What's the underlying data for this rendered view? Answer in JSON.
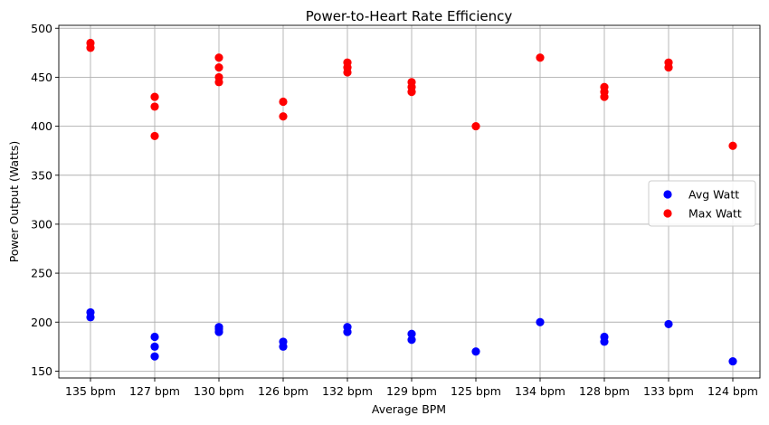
{
  "chart_data": {
    "type": "scatter",
    "title": "Power-to-Heart Rate Efficiency",
    "xlabel": "Average BPM",
    "ylabel": "Power Output (Watts)",
    "categories": [
      "135 bpm",
      "127 bpm",
      "130 bpm",
      "126 bpm",
      "132 bpm",
      "129 bpm",
      "125 bpm",
      "134 bpm",
      "128 bpm",
      "133 bpm",
      "124 bpm"
    ],
    "ylim": [
      143,
      503
    ],
    "yticks": [
      150,
      200,
      250,
      300,
      350,
      400,
      450,
      500
    ],
    "grid": true,
    "legend_position": "center-right",
    "series": [
      {
        "name": "Avg Watt",
        "color": "#0000ff",
        "points": [
          {
            "x": "135 bpm",
            "y": 205
          },
          {
            "x": "135 bpm",
            "y": 210
          },
          {
            "x": "127 bpm",
            "y": 165
          },
          {
            "x": "127 bpm",
            "y": 175
          },
          {
            "x": "127 bpm",
            "y": 185
          },
          {
            "x": "130 bpm",
            "y": 190
          },
          {
            "x": "130 bpm",
            "y": 193
          },
          {
            "x": "130 bpm",
            "y": 195
          },
          {
            "x": "126 bpm",
            "y": 175
          },
          {
            "x": "126 bpm",
            "y": 180
          },
          {
            "x": "132 bpm",
            "y": 190
          },
          {
            "x": "132 bpm",
            "y": 195
          },
          {
            "x": "129 bpm",
            "y": 182
          },
          {
            "x": "129 bpm",
            "y": 188
          },
          {
            "x": "125 bpm",
            "y": 170
          },
          {
            "x": "134 bpm",
            "y": 200
          },
          {
            "x": "128 bpm",
            "y": 180
          },
          {
            "x": "128 bpm",
            "y": 185
          },
          {
            "x": "133 bpm",
            "y": 198
          },
          {
            "x": "124 bpm",
            "y": 160
          }
        ]
      },
      {
        "name": "Max Watt",
        "color": "#ff0000",
        "points": [
          {
            "x": "135 bpm",
            "y": 480
          },
          {
            "x": "135 bpm",
            "y": 485
          },
          {
            "x": "127 bpm",
            "y": 390
          },
          {
            "x": "127 bpm",
            "y": 420
          },
          {
            "x": "127 bpm",
            "y": 430
          },
          {
            "x": "130 bpm",
            "y": 445
          },
          {
            "x": "130 bpm",
            "y": 450
          },
          {
            "x": "130 bpm",
            "y": 460
          },
          {
            "x": "130 bpm",
            "y": 470
          },
          {
            "x": "126 bpm",
            "y": 410
          },
          {
            "x": "126 bpm",
            "y": 425
          },
          {
            "x": "132 bpm",
            "y": 455
          },
          {
            "x": "132 bpm",
            "y": 460
          },
          {
            "x": "132 bpm",
            "y": 465
          },
          {
            "x": "129 bpm",
            "y": 435
          },
          {
            "x": "129 bpm",
            "y": 440
          },
          {
            "x": "129 bpm",
            "y": 445
          },
          {
            "x": "125 bpm",
            "y": 400
          },
          {
            "x": "134 bpm",
            "y": 470
          },
          {
            "x": "128 bpm",
            "y": 430
          },
          {
            "x": "128 bpm",
            "y": 435
          },
          {
            "x": "128 bpm",
            "y": 440
          },
          {
            "x": "133 bpm",
            "y": 460
          },
          {
            "x": "133 bpm",
            "y": 465
          },
          {
            "x": "124 bpm",
            "y": 380
          }
        ]
      }
    ]
  }
}
